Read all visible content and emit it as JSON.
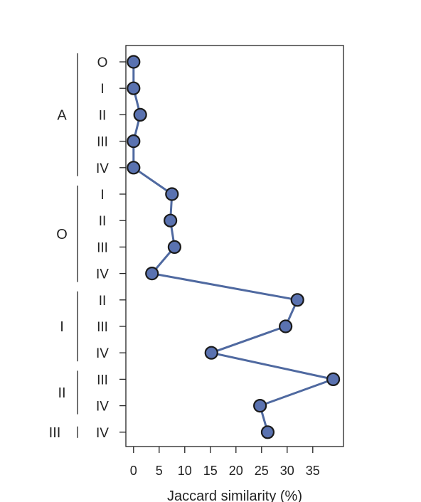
{
  "chart_data": {
    "type": "line",
    "orientation": "horizontal",
    "xlabel": "Jaccard similarity (%)",
    "x_ticks": [
      0,
      5,
      10,
      15,
      20,
      25,
      30,
      35
    ],
    "xlim": [
      -1.5,
      41
    ],
    "categories": [
      {
        "group": "A",
        "label": "O"
      },
      {
        "group": "A",
        "label": "I"
      },
      {
        "group": "A",
        "label": "II"
      },
      {
        "group": "A",
        "label": "III"
      },
      {
        "group": "A",
        "label": "IV"
      },
      {
        "group": "O",
        "label": "I"
      },
      {
        "group": "O",
        "label": "II"
      },
      {
        "group": "O",
        "label": "III"
      },
      {
        "group": "O",
        "label": "IV"
      },
      {
        "group": "I",
        "label": "II"
      },
      {
        "group": "I",
        "label": "III"
      },
      {
        "group": "I",
        "label": "IV"
      },
      {
        "group": "II",
        "label": "III"
      },
      {
        "group": "II",
        "label": "IV"
      },
      {
        "group": "III",
        "label": "IV"
      }
    ],
    "groups": [
      "A",
      "O",
      "I",
      "II",
      "III"
    ],
    "series": [
      {
        "values": [
          0,
          0,
          1.3,
          0,
          0,
          7.5,
          7.2,
          8,
          3.6,
          32,
          29.7,
          15.2,
          39,
          24.7,
          26.2
        ]
      }
    ],
    "colors": {
      "line": "#4f69a0",
      "marker_fill": "#5a72b0",
      "marker_edge": "#1a1a1a",
      "axis": "#222222"
    },
    "grid": false,
    "legend": "none"
  }
}
